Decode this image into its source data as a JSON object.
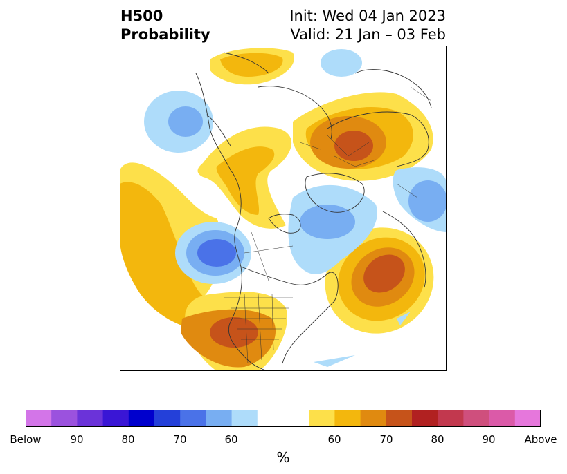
{
  "title": {
    "left_line1": "H500",
    "left_line2": "Probability",
    "right_line1": "Init: Wed 04 Jan 2023",
    "right_line2": "Valid: 21 Jan – 03 Feb"
  },
  "colorbar": {
    "colors": [
      "#d375e8",
      "#9b52de",
      "#6b33d9",
      "#3a16d5",
      "#0000cd",
      "#2440d9",
      "#4a72e8",
      "#78aef2",
      "#aedcfa",
      "#ffffff",
      "#ffffff",
      "#fde04a",
      "#f3b70d",
      "#e08a10",
      "#c6531a",
      "#b12121",
      "#c2384e",
      "#cf4f7d",
      "#db5aa8",
      "#e677dc"
    ],
    "labels": [
      "Below",
      "90",
      "80",
      "70",
      "60",
      "60",
      "70",
      "80",
      "90",
      "Above"
    ],
    "unit": "%"
  }
}
